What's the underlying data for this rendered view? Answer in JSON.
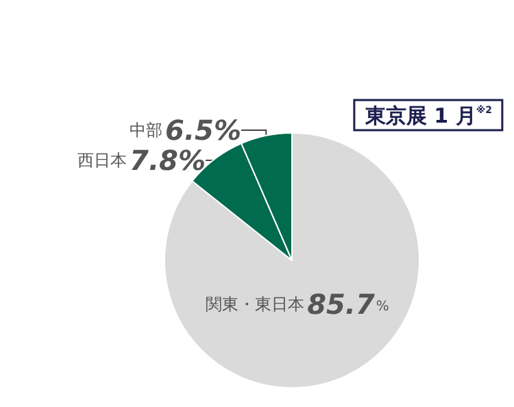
{
  "chart_data": {
    "type": "pie",
    "title": "東京展 1 月$^{※2}$",
    "categories": [
      "関東・東日本",
      "西日本",
      "中部"
    ],
    "values": [
      85.7,
      7.8,
      6.5
    ],
    "colors": [
      "#d9dad9",
      "#006b4e",
      "#006b4e"
    ],
    "value_labels": [
      "85.7%",
      "7.8%",
      "6.5%"
    ],
    "legend": false
  }
}
